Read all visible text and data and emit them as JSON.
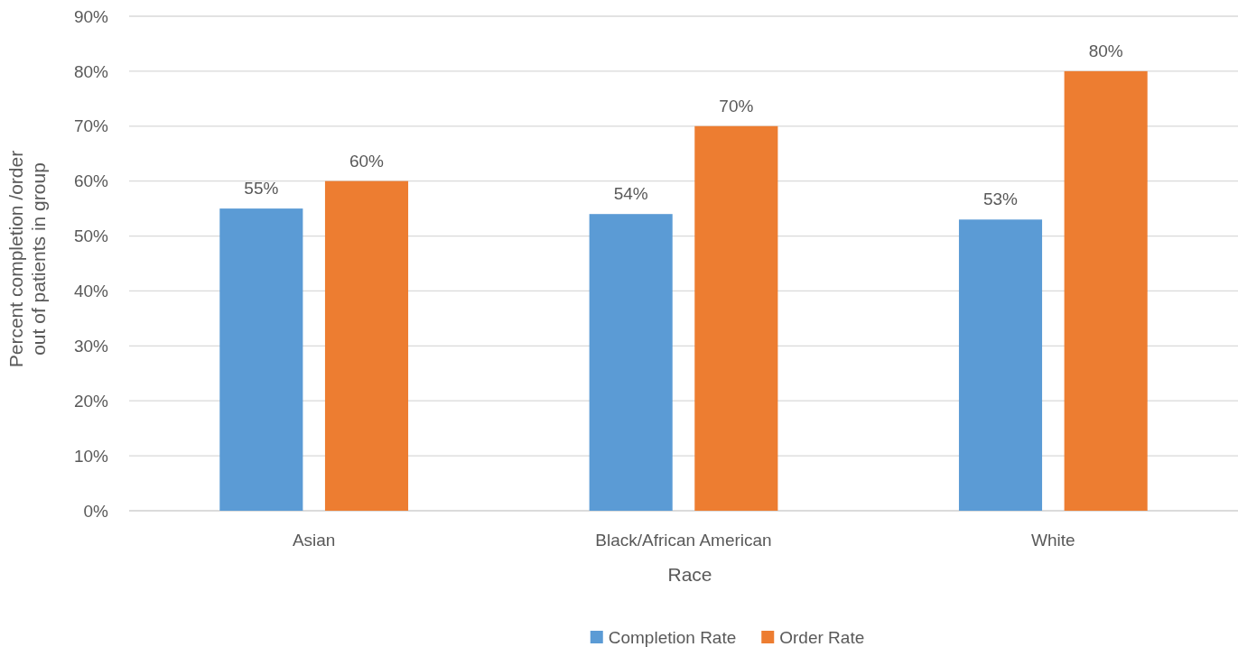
{
  "chart_data": {
    "type": "bar",
    "xlabel": "Race",
    "ylabel": "Percent completion /order\nout of patients in group",
    "categories": [
      "Asian",
      "Black/African American",
      "White"
    ],
    "series": [
      {
        "name": "Completion Rate",
        "color": "#5b9bd5",
        "values": [
          55,
          54,
          53
        ],
        "value_labels": [
          "55%",
          "54%",
          "53%"
        ]
      },
      {
        "name": "Order Rate",
        "color": "#ed7d31",
        "values": [
          60,
          70,
          80
        ],
        "value_labels": [
          "60%",
          "70%",
          "80%"
        ]
      }
    ],
    "ylim": [
      0,
      90
    ],
    "yticks": [
      {
        "value": 0,
        "label": "0%"
      },
      {
        "value": 10,
        "label": "10%"
      },
      {
        "value": 20,
        "label": "20%"
      },
      {
        "value": 30,
        "label": "30%"
      },
      {
        "value": 40,
        "label": "40%"
      },
      {
        "value": 50,
        "label": "50%"
      },
      {
        "value": 60,
        "label": "60%"
      },
      {
        "value": 70,
        "label": "70%"
      },
      {
        "value": 80,
        "label": "80%"
      },
      {
        "value": 90,
        "label": "90%"
      }
    ],
    "grid": "y",
    "legend": "bottom"
  }
}
